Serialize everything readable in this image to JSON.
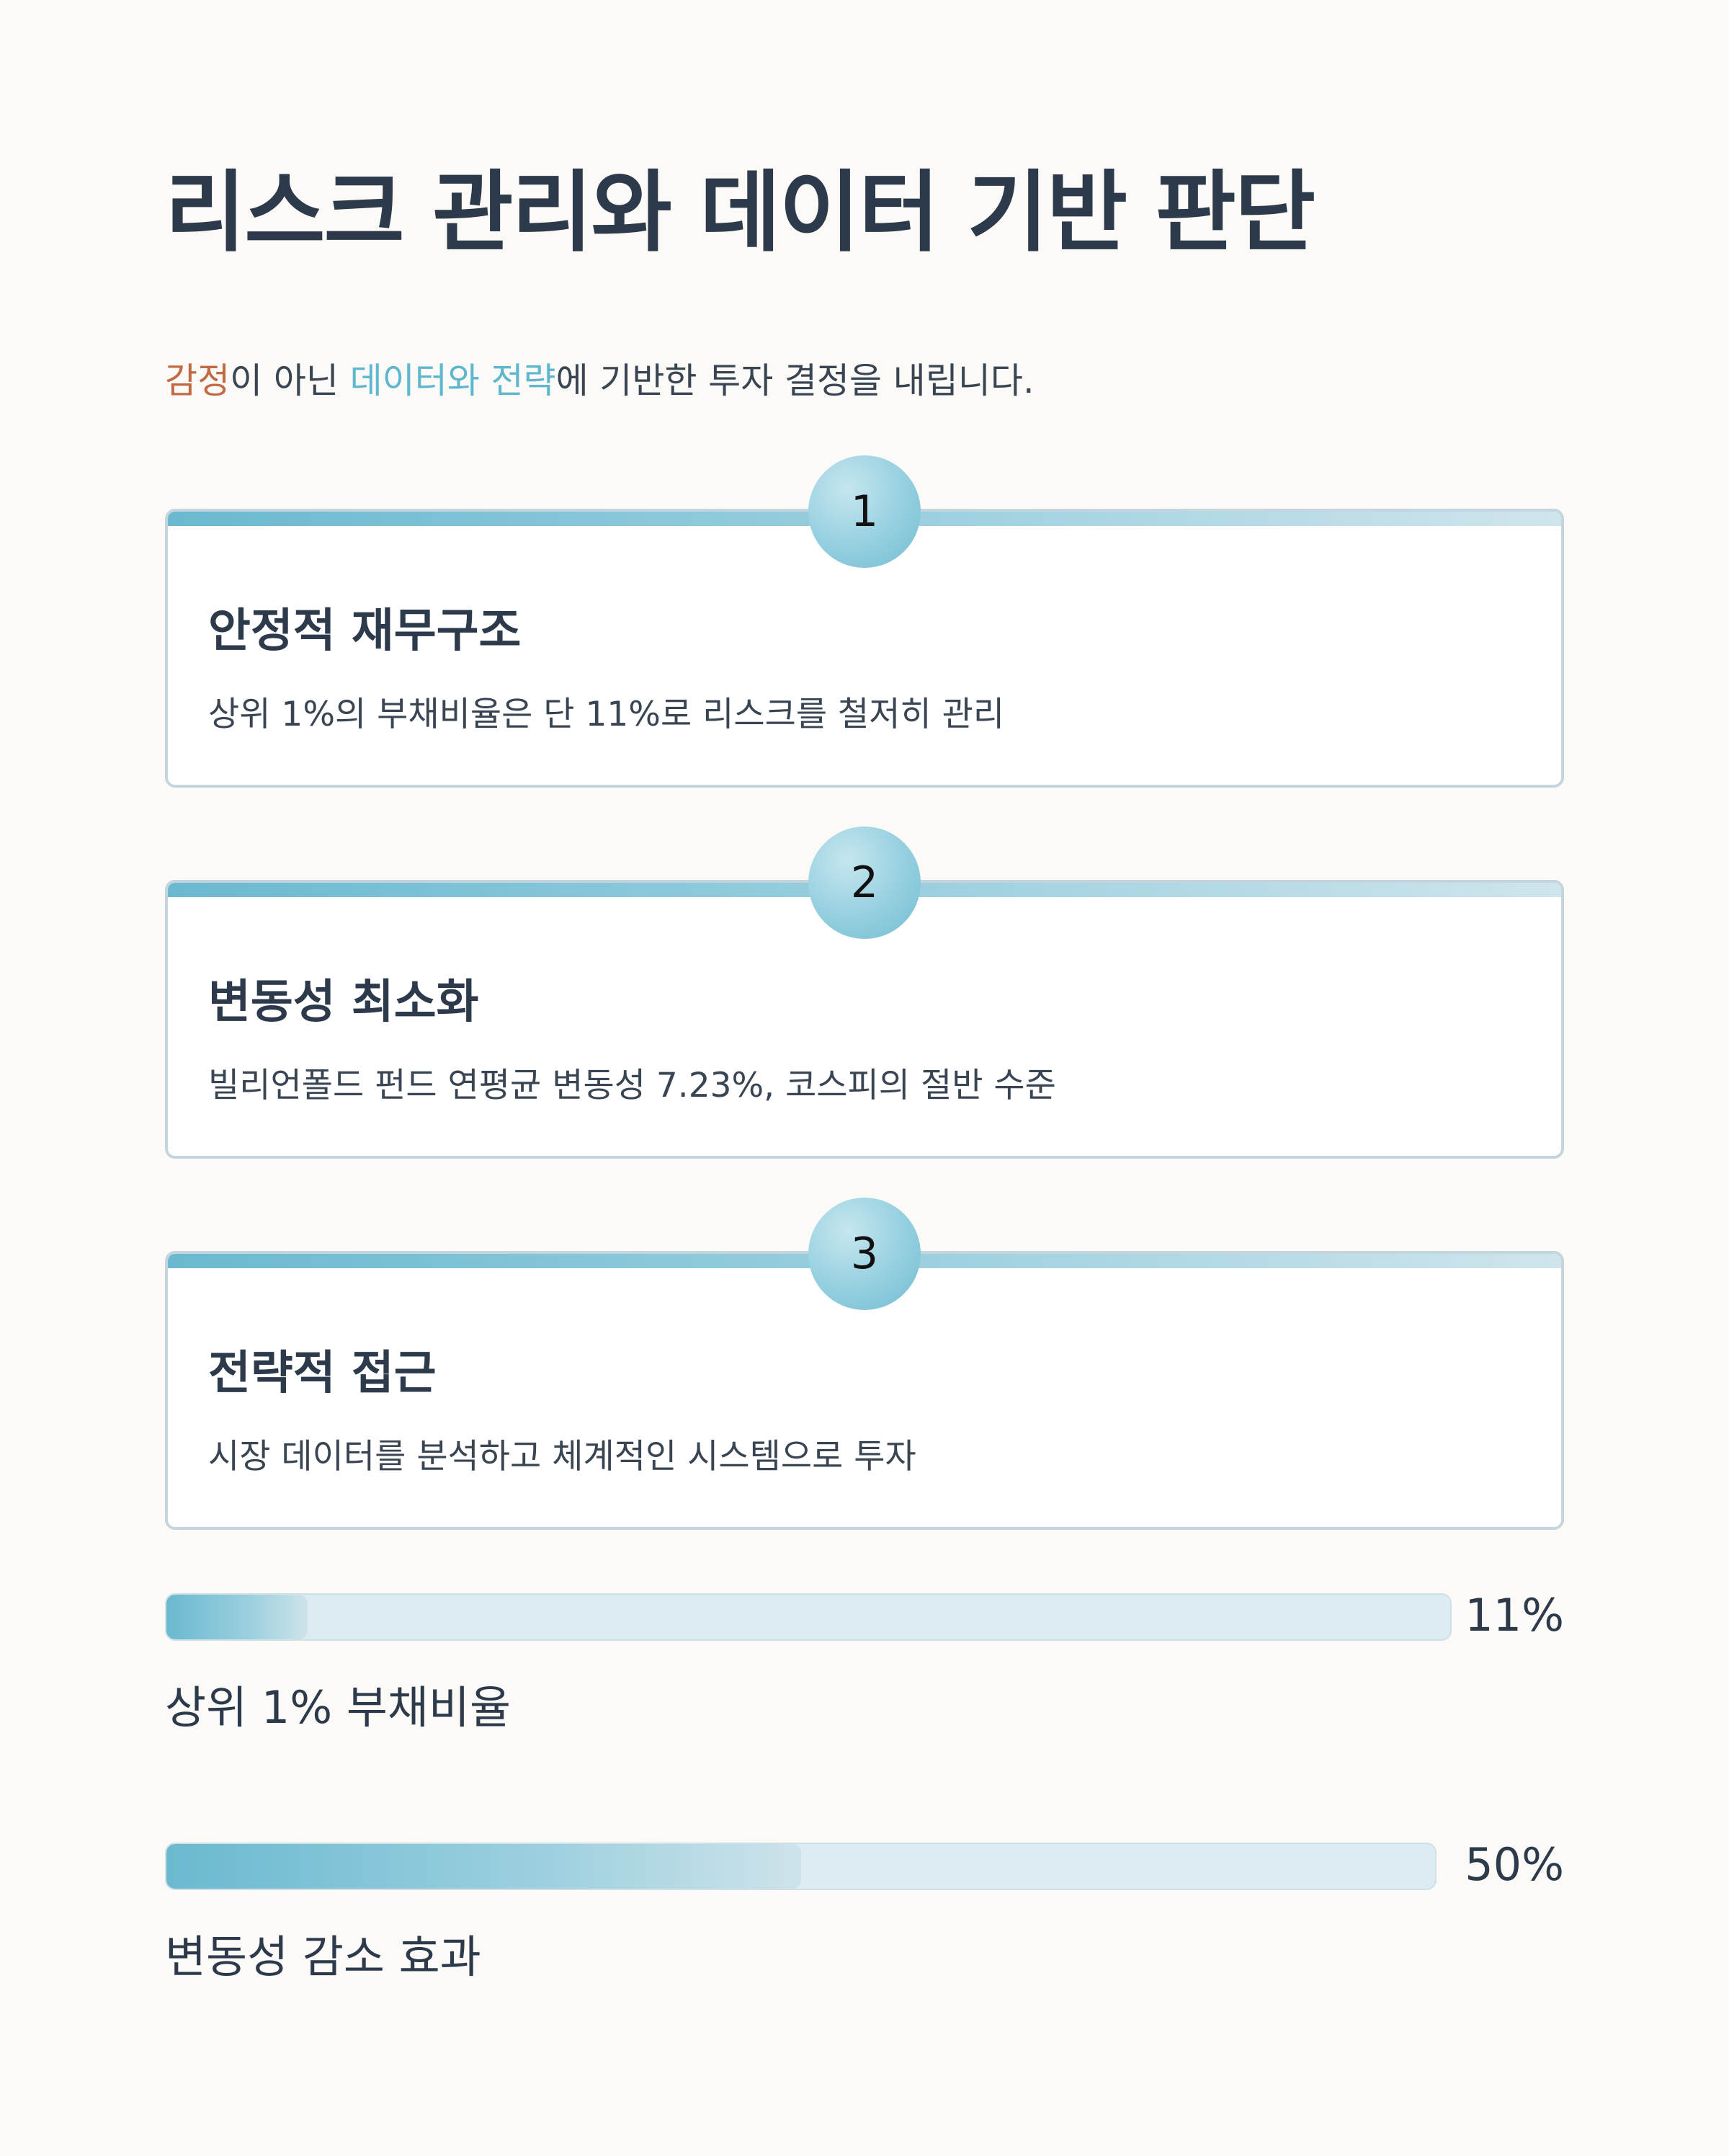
{
  "header": {
    "title": "리스크 관리와 데이터 기반 판단",
    "subtitle": {
      "part1": "감정",
      "part2": "이 아닌 ",
      "part3": "데이터와 전략",
      "part4": "에 기반한 투자 결정을 내립니다."
    }
  },
  "colors": {
    "accent_warm": "#c26a45",
    "accent_cool": "#5fb6cf",
    "text": "#2d3a4b"
  },
  "cards": [
    {
      "number": "1",
      "title": "안정적 재무구조",
      "description": "상위 1%의 부채비율은 단 11%로 리스크를 철저히 관리"
    },
    {
      "number": "2",
      "title": "변동성 최소화",
      "description": "빌리언폴드 펀드 연평균 변동성 7.23%, 코스피의 절반 수준"
    },
    {
      "number": "3",
      "title": "전략적 접근",
      "description": "시장 데이터를 분석하고 체계적인 시스템으로 투자"
    }
  ],
  "stats": [
    {
      "value_text": "11%",
      "fraction": 0.11,
      "label": "상위 1% 부채비율"
    },
    {
      "value_text": "50%",
      "fraction": 0.5,
      "label": "변동성 감소 효과"
    }
  ]
}
